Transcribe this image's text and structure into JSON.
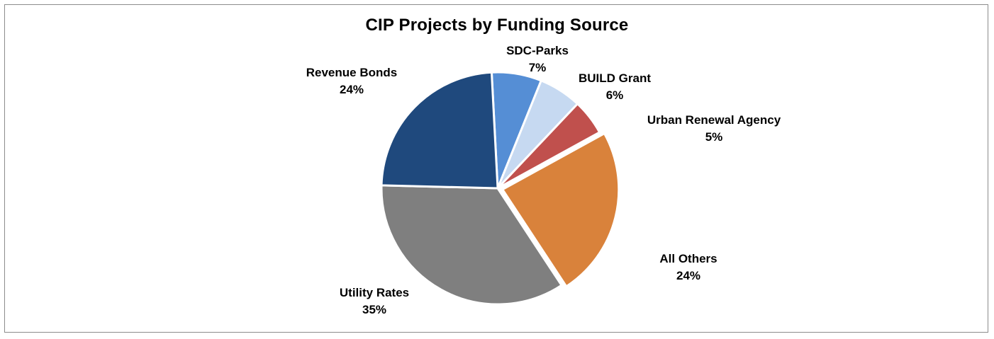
{
  "chart_data": {
    "type": "pie",
    "title": "CIP Projects by Funding Source",
    "slices": [
      {
        "name": "SDC-Parks",
        "value": 7,
        "pct_label": "7%",
        "color": "#558ed5"
      },
      {
        "name": "BUILD Grant",
        "value": 6,
        "pct_label": "6%",
        "color": "#c6d9f1"
      },
      {
        "name": "Urban Renewal Agency",
        "value": 5,
        "pct_label": "5%",
        "color": "#c0504d"
      },
      {
        "name": "All Others",
        "value": 24,
        "pct_label": "24%",
        "color": "#d9823b"
      },
      {
        "name": "Utility Rates",
        "value": 35,
        "pct_label": "35%",
        "color": "#7f7f7f"
      },
      {
        "name": "Revenue Bonds",
        "value": 24,
        "pct_label": "24%",
        "color": "#1f497d"
      }
    ],
    "legend": "none",
    "data_labels": "outside"
  }
}
